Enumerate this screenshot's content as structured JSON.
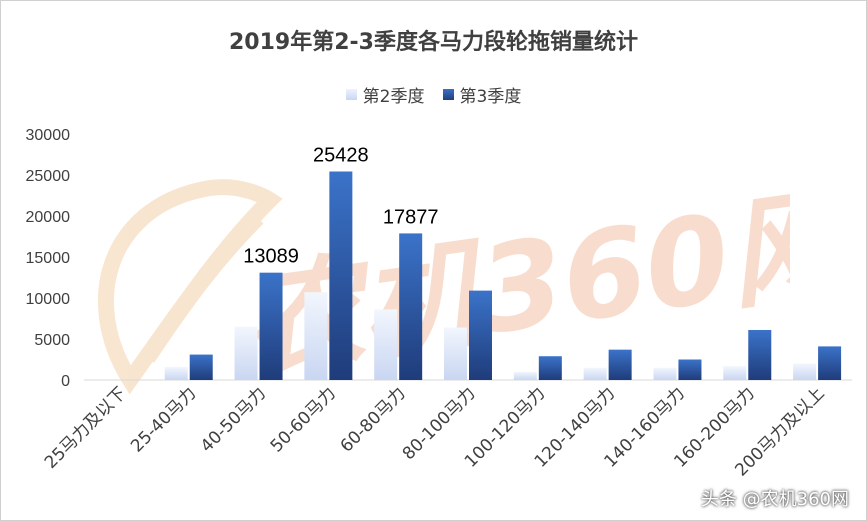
{
  "chart_data": {
    "type": "bar",
    "title": "2019年第2-3季度各马力段轮拖销量统计",
    "categories": [
      "25马力及以下",
      "25-40马力",
      "40-50马力",
      "50-60马力",
      "60-80马力",
      "80-100马力",
      "100-120马力",
      "120-140马力",
      "140-160马力",
      "160-200马力",
      "200马力及以上"
    ],
    "series": [
      {
        "name": "第2季度",
        "values": [
          0,
          1600,
          6500,
          10700,
          8600,
          6400,
          1000,
          1500,
          1500,
          1700,
          2000
        ]
      },
      {
        "name": "第3季度",
        "values": [
          0,
          3100,
          13089,
          25428,
          17877,
          10900,
          2900,
          3700,
          2500,
          6100,
          4100
        ]
      }
    ],
    "data_labels": [
      {
        "series": 1,
        "index": 2,
        "text": "13089"
      },
      {
        "series": 1,
        "index": 3,
        "text": "25428"
      },
      {
        "series": 1,
        "index": 4,
        "text": "17877"
      }
    ],
    "ylim": [
      0,
      30000
    ],
    "yticks": [
      0,
      5000,
      10000,
      15000,
      20000,
      25000,
      30000
    ],
    "xlabel": "",
    "ylabel": "",
    "grid": false,
    "legend_position": "top",
    "colors": {
      "series1": "#c9d6f2",
      "series2": "#2f5fb3",
      "text": "#404040",
      "axis": "#d9d9d9"
    }
  },
  "watermark": {
    "text": "农机360网"
  },
  "credit": "头条 @农机360网"
}
